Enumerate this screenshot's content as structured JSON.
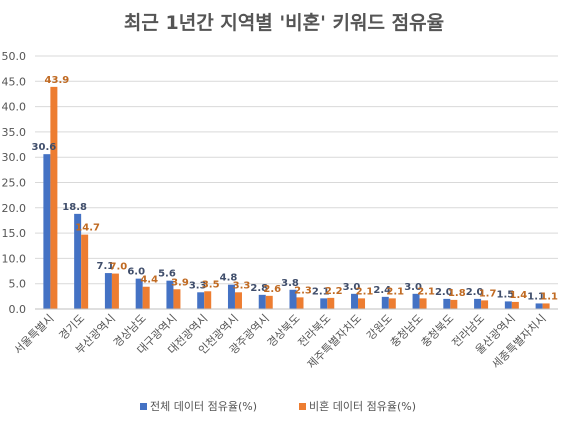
{
  "chart_data": {
    "type": "bar",
    "title": "최근 1년간 지역별 '비혼' 키워드 점유율",
    "xlabel": "",
    "ylabel": "",
    "ylim": [
      0,
      50
    ],
    "yticks": [
      "0.0",
      "5.0",
      "10.0",
      "15.0",
      "20.0",
      "25.0",
      "30.0",
      "35.0",
      "40.0",
      "45.0",
      "50.0"
    ],
    "grid": true,
    "legend_position": "bottom",
    "categories": [
      "서울특별시",
      "경기도",
      "부산광역시",
      "경상남도",
      "대구광역시",
      "대전광역시",
      "인천광역시",
      "광주광역시",
      "경상북도",
      "전라북도",
      "제주특별자치도",
      "강원도",
      "충청남도",
      "충청북도",
      "전라남도",
      "울산광역시",
      "세종특별자치시"
    ],
    "series": [
      {
        "name": "전체 데이터 점유율(%)",
        "color": "#4472C4",
        "values": [
          30.6,
          18.8,
          7.1,
          6.0,
          5.6,
          3.3,
          4.8,
          2.8,
          3.8,
          2.1,
          3.0,
          2.4,
          3.0,
          2.0,
          2.0,
          1.5,
          1.1
        ]
      },
      {
        "name": "비혼 데이터 점유율(%)",
        "color": "#ED7D31",
        "values": [
          43.9,
          14.7,
          7.0,
          4.4,
          3.9,
          3.5,
          3.3,
          2.6,
          2.3,
          2.2,
          2.1,
          2.1,
          2.1,
          1.8,
          1.7,
          1.4,
          1.1
        ]
      }
    ]
  }
}
